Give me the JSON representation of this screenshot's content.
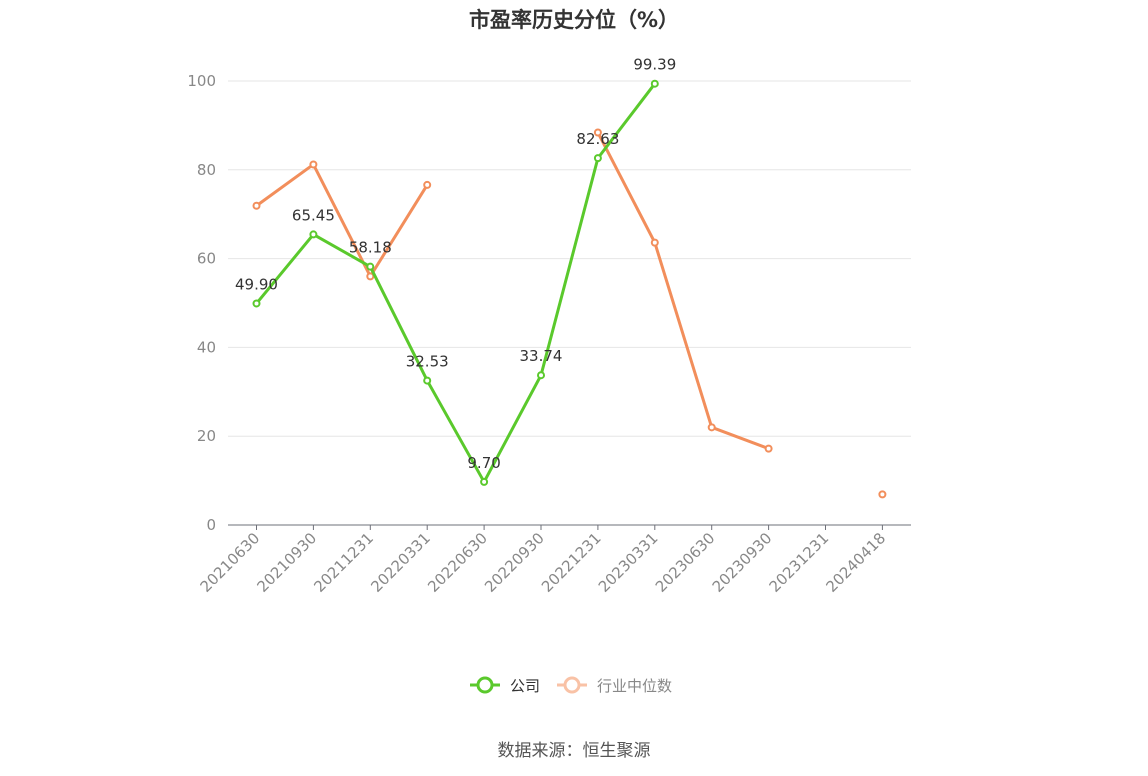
{
  "chart_data": {
    "type": "line",
    "title": "市盈率历史分位（%）",
    "xlabel": "",
    "ylabel": "",
    "ylim": [
      0,
      100
    ],
    "yticks": [
      0,
      20,
      40,
      60,
      80,
      100
    ],
    "grid": true,
    "legend_position": "bottom",
    "categories": [
      "20210630",
      "20210930",
      "20211231",
      "20220331",
      "20220630",
      "20220930",
      "20221231",
      "20230331",
      "20230630",
      "20230930",
      "20231231",
      "20240418"
    ],
    "series": [
      {
        "name": "公司",
        "color": "#5ac92c",
        "values": [
          49.9,
          65.45,
          58.18,
          32.53,
          9.7,
          33.74,
          82.63,
          99.39,
          null,
          null,
          null,
          null
        ],
        "labels": [
          "49.90",
          "65.45",
          "58.18",
          "32.53",
          "9.70",
          "33.74",
          "82.63",
          "99.39",
          null,
          null,
          null,
          null
        ]
      },
      {
        "name": "行业中位数",
        "color": "#f28e5b",
        "values": [
          71.9,
          81.2,
          56.0,
          76.6,
          null,
          null,
          88.4,
          63.6,
          22.0,
          17.2,
          null,
          6.9
        ],
        "labels": [
          null,
          null,
          null,
          null,
          null,
          null,
          null,
          null,
          null,
          null,
          null,
          null
        ]
      }
    ],
    "source": "数据来源：恒生聚源"
  }
}
